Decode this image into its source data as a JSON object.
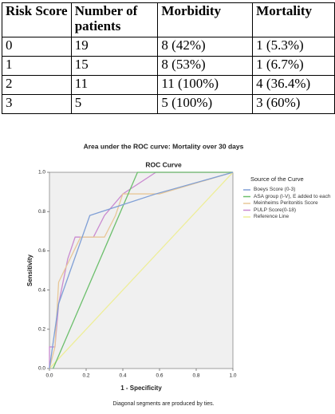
{
  "table": {
    "header": [
      "Risk Score",
      "Number of patients",
      "Morbidity",
      "Mortality"
    ],
    "rows": [
      [
        "0",
        "19",
        "8 (42%)",
        "1 (5.3%)"
      ],
      [
        "1",
        "15",
        "8 (53%)",
        "1 (6.7%)"
      ],
      [
        "2",
        "11",
        "11 (100%)",
        "4 (36.4%)"
      ],
      [
        "3",
        "5",
        "5 (100%)",
        "3 (60%)"
      ]
    ]
  },
  "chart_data": {
    "type": "line",
    "title": "Area under the ROC curve: Mortality over 30 days",
    "subtitle": "ROC Curve",
    "x_label": "1 - Specificity",
    "y_label": "Sensitivity",
    "legend_title": "Source of the Curve",
    "footnote": "Diagonal segments are produced by ties.",
    "xlim": [
      0,
      1
    ],
    "ylim": [
      0,
      1
    ],
    "xticks": [
      {
        "value": 0,
        "label": "0.0"
      },
      0.2,
      0.4,
      0.6,
      0.8,
      {
        "value": 1,
        "label": "1.0"
      }
    ],
    "yticks": [
      {
        "value": 0,
        "label": "0.0"
      },
      0.2,
      0.4,
      0.6,
      0.8,
      {
        "value": 1,
        "label": "1.0"
      }
    ],
    "series": [
      {
        "name": "Boeys Score (0-3)",
        "color": "#7f9fd6",
        "x": [
          0,
          0.05,
          0.22,
          0.58,
          1
        ],
        "values": [
          0,
          0.33,
          0.78,
          0.89,
          1
        ]
      },
      {
        "name": "ASA group (I-V), E added to each",
        "color": "#6cbf6c",
        "x": [
          0.02,
          0.48,
          1
        ],
        "values": [
          0,
          1,
          1
        ]
      },
      {
        "name": "Meinheims Peritonitis Score",
        "color": "#e8c898",
        "x": [
          0,
          0.03,
          0.05,
          0.17,
          0.3,
          0.36,
          0.4,
          0.6,
          1
        ],
        "values": [
          0,
          0.11,
          0.44,
          0.67,
          0.67,
          0.78,
          0.89,
          0.89,
          1
        ]
      },
      {
        "name": "PULP Score(0-18)",
        "color": "#c98ad0",
        "x": [
          0,
          0,
          0.03,
          0.05,
          0.1,
          0.14,
          0.24,
          0.3,
          0.4,
          0.58,
          1
        ],
        "values": [
          0,
          0.11,
          0.11,
          0.33,
          0.56,
          0.67,
          0.67,
          0.78,
          0.89,
          1,
          1
        ]
      },
      {
        "name": "Reference Line",
        "color": "#eeee99",
        "x": [
          0,
          1
        ],
        "values": [
          0,
          1
        ]
      }
    ]
  }
}
